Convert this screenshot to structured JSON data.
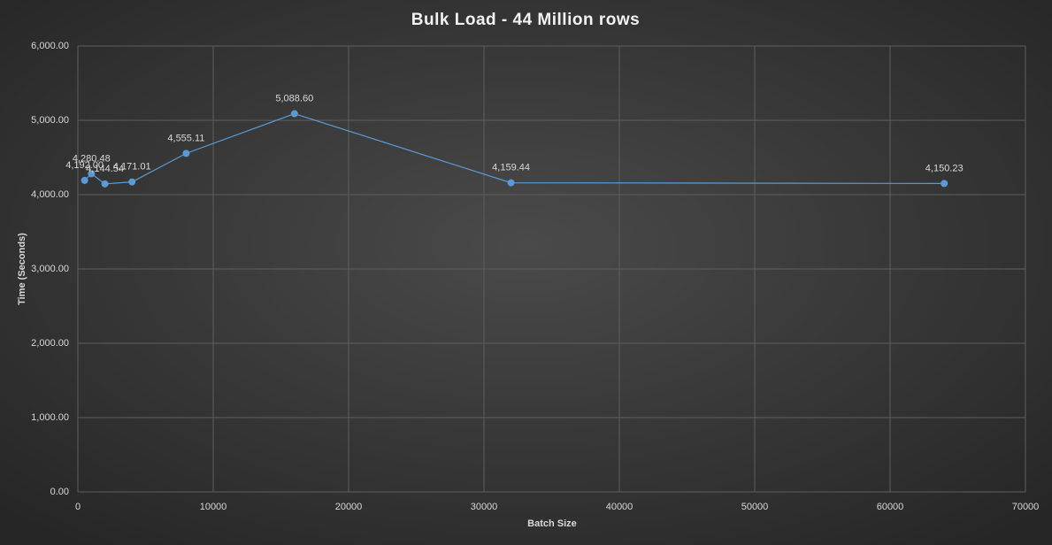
{
  "chart_data": {
    "type": "line",
    "title": "Bulk Load - 44 Million rows",
    "x_label": "Batch Size",
    "y_label": "Time (Seconds)",
    "x": [
      500,
      1000,
      2000,
      4000,
      8000,
      16000,
      32000,
      64000
    ],
    "values": [
      4192,
      4280.48,
      4144.54,
      4171.01,
      4555.11,
      5088.6,
      4159.44,
      4150.23
    ],
    "value_labels": [
      "4,192.00",
      "4,280.48",
      "4,144.54",
      "4,171.01",
      "4,555.11",
      "5,088.60",
      "4,159.44",
      "4,150.23"
    ],
    "color": "#5b9bd5",
    "xlim": [
      0,
      70000
    ],
    "xticks": [
      0,
      10000,
      20000,
      30000,
      40000,
      50000,
      60000,
      70000
    ],
    "ylim": [
      0,
      6000
    ],
    "yticks": [
      {
        "value": 0,
        "label": "0.00"
      },
      {
        "value": 1000,
        "label": "1,000.00"
      },
      {
        "value": 2000,
        "label": "2,000.00"
      },
      {
        "value": 3000,
        "label": "3,000.00"
      },
      {
        "value": 4000,
        "label": "4,000.00"
      },
      {
        "value": 5000,
        "label": "5,000.00"
      },
      {
        "value": 6000,
        "label": "6,000.00"
      }
    ],
    "grid": true
  }
}
